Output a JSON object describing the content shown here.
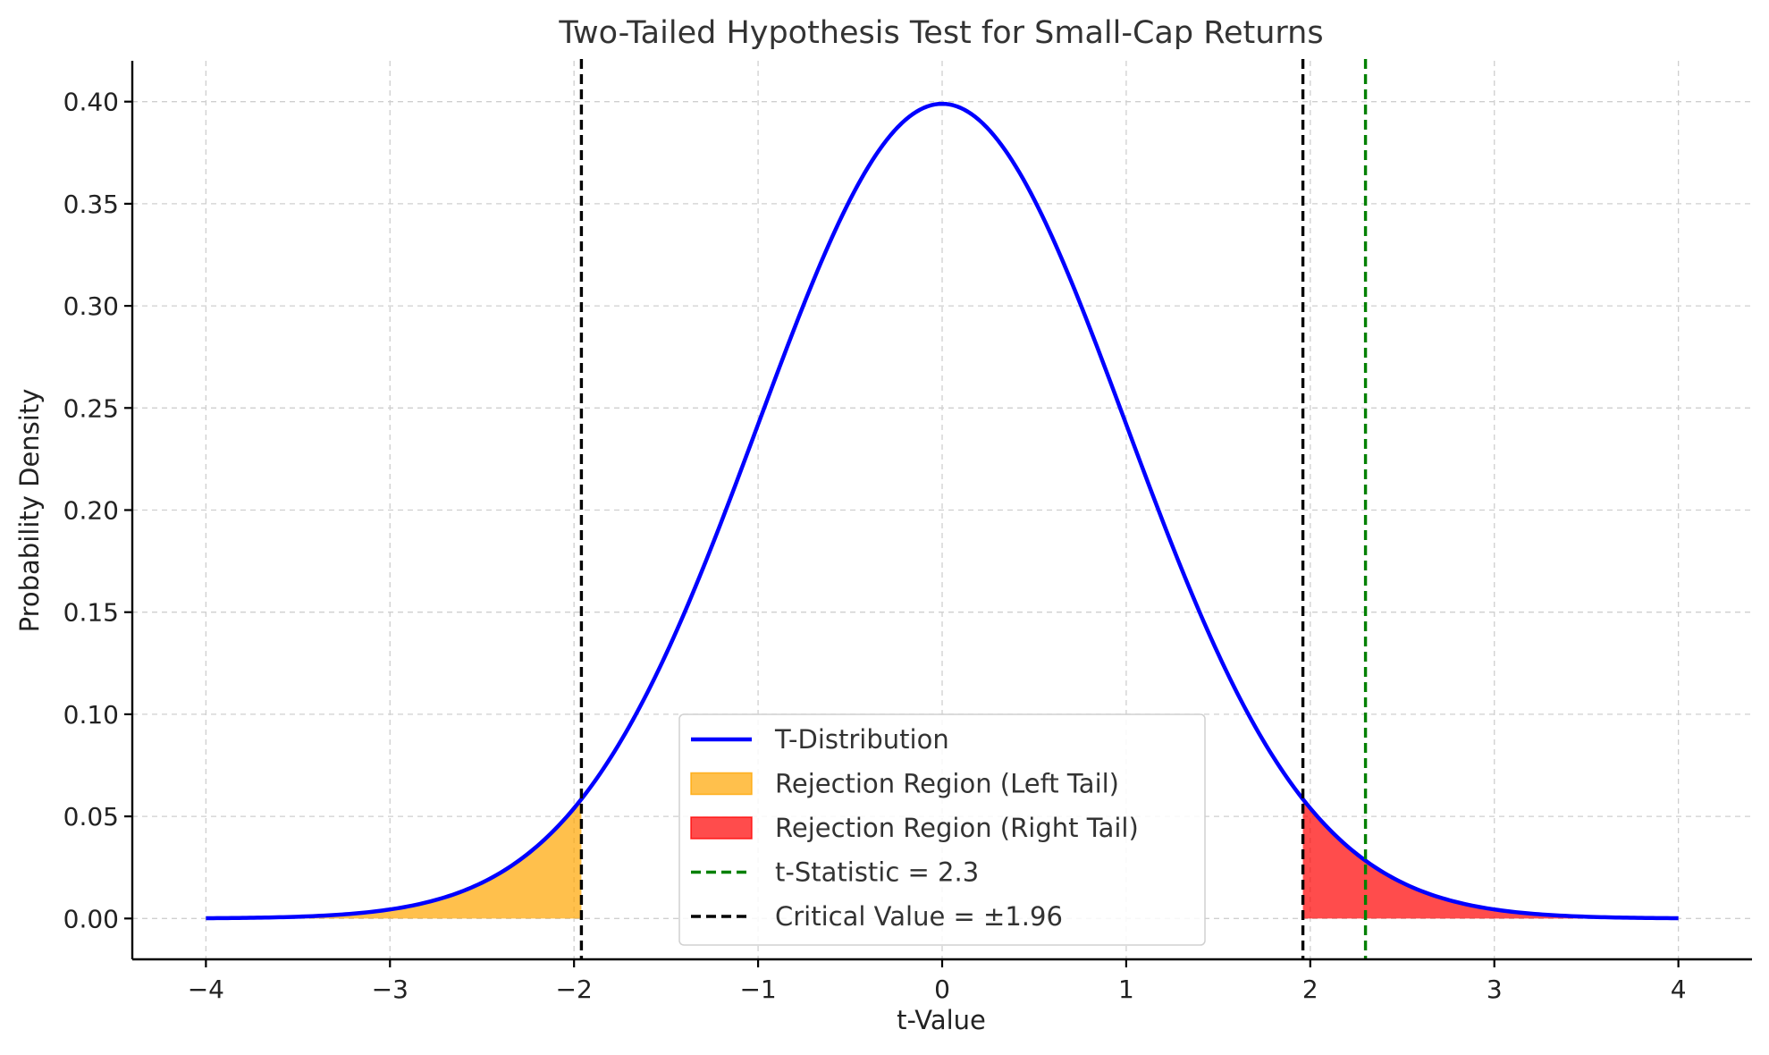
{
  "chart_data": {
    "type": "area",
    "title": "Two-Tailed Hypothesis Test for Small-Cap Returns",
    "xlabel": "t-Value",
    "ylabel": "Probability Density",
    "xlim": [
      -4.4,
      4.4
    ],
    "ylim": [
      -0.02,
      0.42
    ],
    "x_ticks": [
      -4,
      -3,
      -2,
      -1,
      0,
      1,
      2,
      3,
      4
    ],
    "x_tick_labels": [
      "−4",
      "−3",
      "−2",
      "−1",
      "0",
      "1",
      "2",
      "3",
      "4"
    ],
    "y_ticks": [
      0.0,
      0.05,
      0.1,
      0.15,
      0.2,
      0.25,
      0.3,
      0.35,
      0.4
    ],
    "y_tick_labels": [
      "0.00",
      "0.05",
      "0.10",
      "0.15",
      "0.20",
      "0.25",
      "0.30",
      "0.35",
      "0.40"
    ],
    "grid": true,
    "legend_position": "bottom-center",
    "series": [
      {
        "name": "T-Distribution",
        "kind": "line",
        "color": "#0000ff",
        "x": [
          -4.0,
          -3.75,
          -3.5,
          -3.25,
          -3.0,
          -2.75,
          -2.5,
          -2.25,
          -2.0,
          -1.75,
          -1.5,
          -1.25,
          -1.0,
          -0.75,
          -0.5,
          -0.25,
          0.0,
          0.25,
          0.5,
          0.75,
          1.0,
          1.25,
          1.5,
          1.75,
          2.0,
          2.25,
          2.5,
          2.75,
          3.0,
          3.25,
          3.5,
          3.75,
          4.0
        ],
        "y": [
          0.0002,
          0.0004,
          0.0009,
          0.002,
          0.0044,
          0.0091,
          0.0175,
          0.0317,
          0.054,
          0.0863,
          0.1295,
          0.1826,
          0.242,
          0.3011,
          0.3521,
          0.3867,
          0.3989,
          0.3867,
          0.3521,
          0.3011,
          0.242,
          0.1826,
          0.1295,
          0.0863,
          0.054,
          0.0317,
          0.0175,
          0.0091,
          0.0044,
          0.002,
          0.0009,
          0.0004,
          0.0002
        ]
      },
      {
        "name": "Rejection Region (Left Tail)",
        "kind": "fill",
        "color": "#ffa500",
        "from": -4.0,
        "to": -1.96
      },
      {
        "name": "Rejection Region (Right Tail)",
        "kind": "fill",
        "color": "#ff0000",
        "from": 1.96,
        "to": 4.0
      },
      {
        "name": "t-Statistic = 2.3",
        "kind": "vline",
        "color": "#008000",
        "x": 2.3
      },
      {
        "name": "Critical Value = ±1.96",
        "kind": "vline",
        "color": "#000000",
        "x_values": [
          -1.96,
          1.96
        ]
      }
    ]
  }
}
